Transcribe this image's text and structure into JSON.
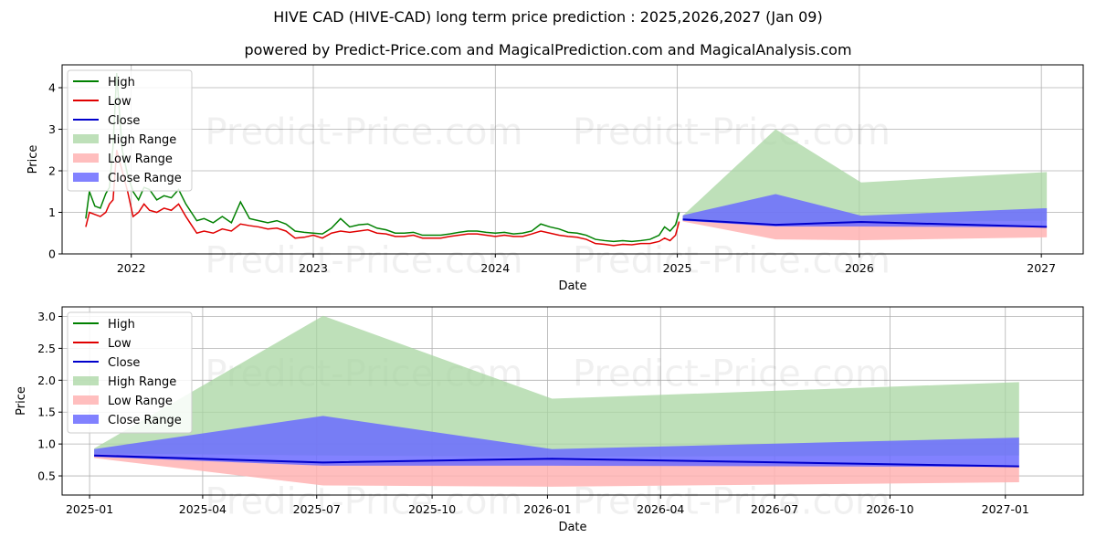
{
  "title": "HIVE CAD (HIVE-CAD) long term price prediction : 2025,2026,2027 (Jan 09)",
  "subtitle": "powered by Predict-Price.com and MagicalPrediction.com and MagicalAnalysis.com",
  "watermark": "Predict-Price.com",
  "colors": {
    "high": "#008000",
    "low": "#e00000",
    "close": "#0000cc",
    "high_range": "#a8d5a2",
    "low_range": "#ffb3b3",
    "close_range": "#6b6bff",
    "grid": "#b0b0b0"
  },
  "chart_data": [
    {
      "type": "line",
      "title": "",
      "xlabel": "Date",
      "ylabel": "Price",
      "xlim": [
        2021.62,
        2027.23
      ],
      "ylim": [
        0,
        4.55
      ],
      "xticks": [
        2022,
        2023,
        2024,
        2025,
        2026,
        2027
      ],
      "xtick_labels": [
        "2022",
        "2023",
        "2024",
        "2025",
        "2026",
        "2027"
      ],
      "yticks": [
        0,
        1,
        2,
        3,
        4
      ],
      "ytick_labels": [
        "0",
        "1",
        "2",
        "3",
        "4"
      ],
      "grid": true,
      "legend_position": "top-left",
      "legend": [
        "High",
        "Low",
        "Close",
        "High Range",
        "Low Range",
        "Close Range"
      ],
      "history": {
        "x": [
          2021.75,
          2021.77,
          2021.8,
          2021.83,
          2021.86,
          2021.88,
          2021.9,
          2021.92,
          2021.95,
          2021.98,
          2022.01,
          2022.04,
          2022.07,
          2022.1,
          2022.14,
          2022.18,
          2022.22,
          2022.26,
          2022.3,
          2022.33,
          2022.36,
          2022.4,
          2022.45,
          2022.5,
          2022.55,
          2022.6,
          2022.65,
          2022.7,
          2022.75,
          2022.8,
          2022.85,
          2022.9,
          2022.95,
          2023.0,
          2023.05,
          2023.1,
          2023.15,
          2023.2,
          2023.25,
          2023.3,
          2023.35,
          2023.4,
          2023.45,
          2023.5,
          2023.55,
          2023.6,
          2023.65,
          2023.7,
          2023.75,
          2023.8,
          2023.85,
          2023.9,
          2023.95,
          2024.0,
          2024.05,
          2024.1,
          2024.15,
          2024.2,
          2024.25,
          2024.3,
          2024.35,
          2024.4,
          2024.45,
          2024.5,
          2024.55,
          2024.6,
          2024.65,
          2024.7,
          2024.75,
          2024.8,
          2024.85,
          2024.9,
          2024.93,
          2024.96,
          2024.99,
          2025.01
        ],
        "high": [
          0.85,
          1.5,
          1.15,
          1.1,
          1.45,
          1.6,
          2.6,
          4.35,
          2.5,
          1.9,
          1.5,
          1.3,
          1.6,
          1.55,
          1.3,
          1.4,
          1.35,
          1.55,
          1.2,
          1.0,
          0.8,
          0.85,
          0.75,
          0.9,
          0.75,
          1.25,
          0.85,
          0.8,
          0.75,
          0.8,
          0.72,
          0.55,
          0.52,
          0.5,
          0.48,
          0.62,
          0.85,
          0.65,
          0.7,
          0.72,
          0.62,
          0.58,
          0.5,
          0.5,
          0.52,
          0.45,
          0.45,
          0.45,
          0.48,
          0.52,
          0.55,
          0.55,
          0.52,
          0.5,
          0.52,
          0.48,
          0.5,
          0.55,
          0.72,
          0.65,
          0.6,
          0.52,
          0.5,
          0.45,
          0.35,
          0.32,
          0.3,
          0.32,
          0.3,
          0.32,
          0.35,
          0.45,
          0.65,
          0.55,
          0.7,
          1.0
        ],
        "low": [
          0.65,
          1.0,
          0.95,
          0.9,
          1.0,
          1.2,
          1.3,
          2.5,
          2.0,
          1.5,
          0.9,
          1.0,
          1.2,
          1.05,
          1.0,
          1.1,
          1.05,
          1.2,
          0.9,
          0.7,
          0.5,
          0.55,
          0.5,
          0.6,
          0.55,
          0.72,
          0.68,
          0.65,
          0.6,
          0.62,
          0.55,
          0.38,
          0.4,
          0.45,
          0.38,
          0.5,
          0.55,
          0.52,
          0.55,
          0.58,
          0.5,
          0.48,
          0.42,
          0.42,
          0.45,
          0.38,
          0.38,
          0.38,
          0.42,
          0.45,
          0.48,
          0.48,
          0.45,
          0.42,
          0.45,
          0.42,
          0.42,
          0.48,
          0.55,
          0.5,
          0.45,
          0.42,
          0.4,
          0.35,
          0.25,
          0.23,
          0.2,
          0.23,
          0.22,
          0.25,
          0.25,
          0.3,
          0.38,
          0.32,
          0.45,
          0.78
        ]
      },
      "forecast_dates": [
        2025.03,
        2025.54,
        2026.01,
        2027.03
      ],
      "high_range": {
        "upper": [
          0.92,
          3.0,
          1.72,
          1.97
        ],
        "lower": [
          0.82,
          0.75,
          0.75,
          0.8
        ]
      },
      "low_range": {
        "upper": [
          0.85,
          0.72,
          0.76,
          0.65
        ],
        "lower": [
          0.78,
          0.35,
          0.33,
          0.4
        ]
      },
      "close_range": {
        "upper": [
          0.93,
          1.44,
          0.92,
          1.1
        ],
        "lower": [
          0.8,
          0.66,
          0.66,
          0.64
        ]
      },
      "close": {
        "x": [
          2025.03,
          2025.54,
          2026.01,
          2027.03
        ],
        "y": [
          0.83,
          0.7,
          0.77,
          0.65
        ]
      }
    },
    {
      "type": "line",
      "title": "",
      "xlabel": "Date",
      "ylabel": "Price",
      "xlim": [
        2024.94,
        2027.17
      ],
      "ylim": [
        0.2,
        3.15
      ],
      "xticks": [
        2025.0,
        2025.247,
        2025.496,
        2025.748,
        2026.0,
        2026.247,
        2026.496,
        2026.748,
        2027.0
      ],
      "xtick_labels": [
        "2025-01",
        "2025-04",
        "2025-07",
        "2025-10",
        "2026-01",
        "2026-04",
        "2026-07",
        "2026-10",
        "2027-01"
      ],
      "yticks": [
        0.5,
        1.0,
        1.5,
        2.0,
        2.5,
        3.0
      ],
      "ytick_labels": [
        "0.5",
        "1.0",
        "1.5",
        "2.0",
        "2.5",
        "3.0"
      ],
      "grid": true,
      "legend_position": "top-left",
      "legend": [
        "High",
        "Low",
        "Close",
        "High Range",
        "Low Range",
        "Close Range"
      ],
      "forecast_dates": [
        2025.01,
        2025.51,
        2026.01,
        2027.03
      ],
      "high_range": {
        "upper": [
          0.93,
          3.01,
          1.71,
          1.97
        ],
        "lower": [
          0.85,
          0.82,
          0.8,
          0.82
        ]
      },
      "low_range": {
        "upper": [
          0.85,
          0.72,
          0.78,
          0.65
        ],
        "lower": [
          0.78,
          0.35,
          0.33,
          0.4
        ]
      },
      "close_range": {
        "upper": [
          0.92,
          1.44,
          0.92,
          1.1
        ],
        "lower": [
          0.8,
          0.66,
          0.66,
          0.64
        ]
      },
      "close": {
        "x": [
          2025.01,
          2025.51,
          2026.01,
          2027.03
        ],
        "y": [
          0.82,
          0.71,
          0.77,
          0.65
        ]
      }
    }
  ]
}
